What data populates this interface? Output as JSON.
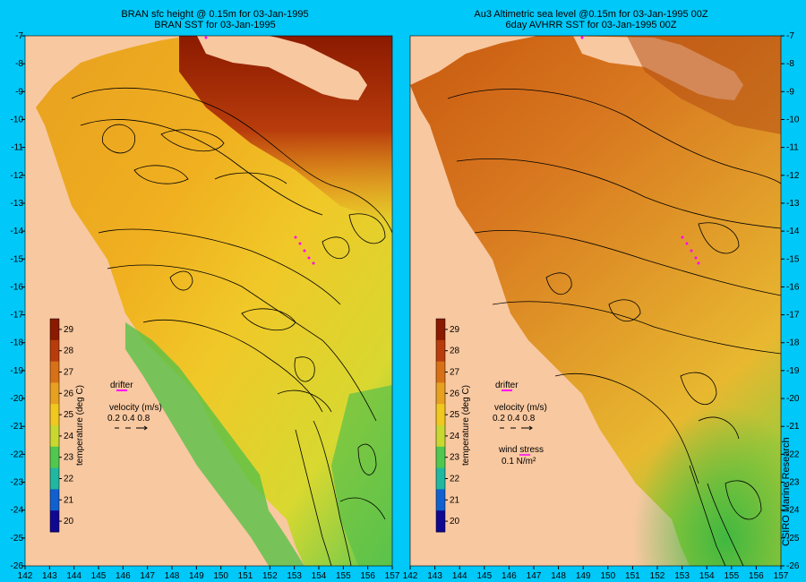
{
  "panels": [
    {
      "title_line1": "BRAN sfc height @ 0.15m  for 03-Jan-1995",
      "title_line2": "BRAN SST for 03-Jan-1995",
      "colorbar_label": "temperature (deg C)",
      "drifter_label": "drifter",
      "velocity_label": "velocity (m/s)",
      "velocity_scale": "0.2 0.4 0.8",
      "wind_label": "",
      "wind_value": ""
    },
    {
      "title_line1": "Au3 Altimetric sea level  @0.15m  for 03-Jan-1995 00Z",
      "title_line2": "6day AVHRR SST for 03-Jan-1995 00Z",
      "colorbar_label": "temperature (deg C)",
      "drifter_label": "drifter",
      "velocity_label": "velocity (m/s)",
      "velocity_scale": "0.2 0.4 0.8",
      "wind_label": "wind stress",
      "wind_value": "0.1 N/m²"
    }
  ],
  "axes": {
    "x_ticks": [
      "142",
      "143",
      "144",
      "145",
      "146",
      "147",
      "148",
      "149",
      "150",
      "151",
      "152",
      "153",
      "154",
      "155",
      "156",
      "157"
    ],
    "y_ticks": [
      "-7",
      "-8",
      "-9",
      "-10",
      "-11",
      "-12",
      "-13",
      "-14",
      "-15",
      "-16",
      "-17",
      "-18",
      "-19",
      "-20",
      "-21",
      "-22",
      "-23",
      "-24",
      "-25",
      "-26"
    ]
  },
  "colorbar": {
    "ticks": [
      "29",
      "28",
      "27",
      "26",
      "25",
      "24",
      "23",
      "22",
      "21",
      "20"
    ],
    "colors": [
      "#8b1a00",
      "#b83c0c",
      "#d87018",
      "#e8a020",
      "#f0c820",
      "#c8d830",
      "#50c850",
      "#20b8a0",
      "#1060d0",
      "#100890"
    ]
  },
  "colors": {
    "background": "#00c8f8",
    "land": "#f8c8a0",
    "contour": "#000000",
    "drifter": "#ff00ff"
  },
  "credit": "CSIRO Marine Research"
}
